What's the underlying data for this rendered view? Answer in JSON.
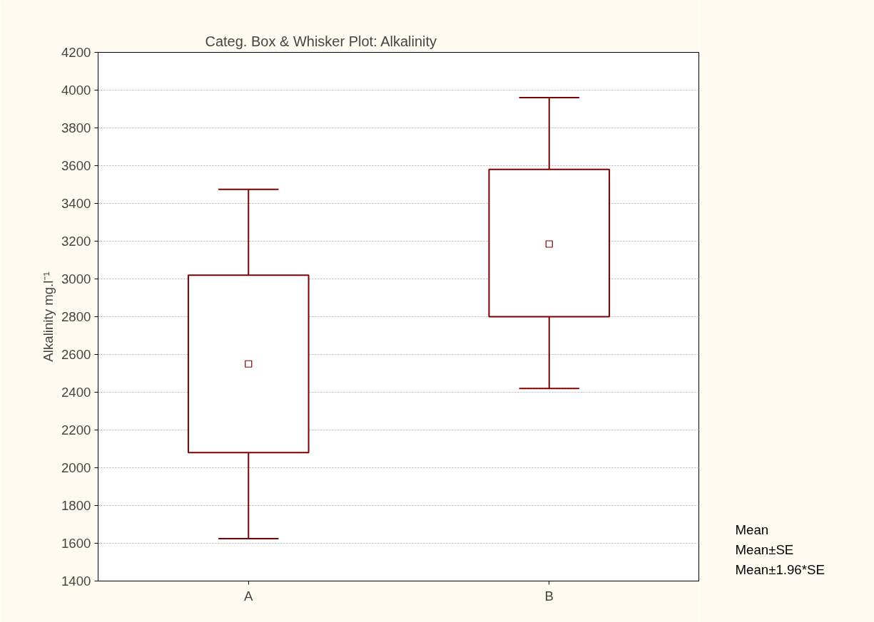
{
  "chart_data": {
    "type": "box",
    "title": "Categ. Box & Whisker Plot: Alkalinity",
    "ylabel": "Alkalinity mg.l⁻¹",
    "categories": [
      "A",
      "B"
    ],
    "boxes": [
      {
        "low": 1625,
        "q1": 2080,
        "q3": 3020,
        "high": 3475,
        "mean": 2550
      },
      {
        "low": 2420,
        "q1": 2800,
        "q3": 3580,
        "high": 3960,
        "mean": 3185
      }
    ],
    "color": "#800000",
    "ylim": [
      1400,
      4200
    ],
    "yticks": [
      1400,
      1600,
      1800,
      2000,
      2200,
      2400,
      2600,
      2800,
      3000,
      3200,
      3400,
      3600,
      3800,
      4000,
      4200
    ],
    "grid": "y",
    "annotations": [
      "Mean",
      "Mean±SE",
      "Mean±1.96*SE"
    ]
  }
}
